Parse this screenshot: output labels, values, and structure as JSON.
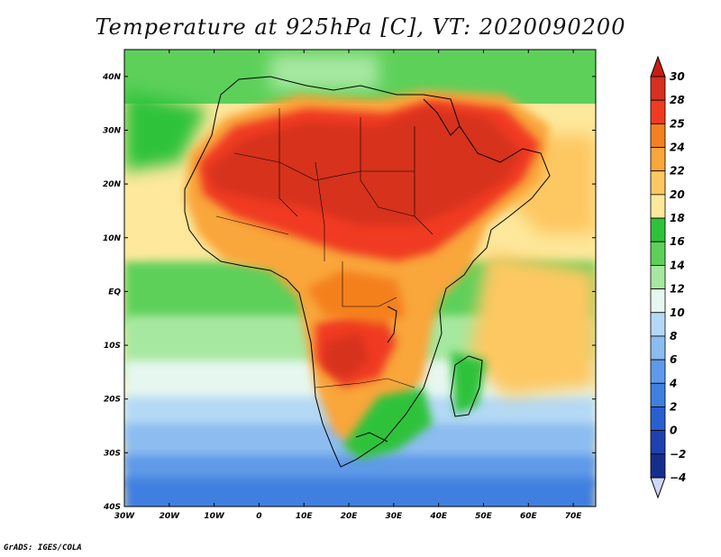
{
  "title": "Temperature at 925hPa [C], VT: 2020090200",
  "footer": "GrADS: IGES/COLA",
  "map": {
    "projection": "lat-lon",
    "lon_range": [
      -30,
      75
    ],
    "lat_range": [
      -40,
      45
    ],
    "lon_ticks": [
      {
        "value": -30,
        "label": "30W"
      },
      {
        "value": -20,
        "label": "20W"
      },
      {
        "value": -10,
        "label": "10W"
      },
      {
        "value": 0,
        "label": "0"
      },
      {
        "value": 10,
        "label": "10E"
      },
      {
        "value": 20,
        "label": "20E"
      },
      {
        "value": 30,
        "label": "30E"
      },
      {
        "value": 40,
        "label": "40E"
      },
      {
        "value": 50,
        "label": "50E"
      },
      {
        "value": 60,
        "label": "60E"
      },
      {
        "value": 70,
        "label": "70E"
      }
    ],
    "lat_ticks": [
      {
        "value": 40,
        "label": "40N"
      },
      {
        "value": 30,
        "label": "30N"
      },
      {
        "value": 20,
        "label": "20N"
      },
      {
        "value": 10,
        "label": "10N"
      },
      {
        "value": 0,
        "label": "EQ"
      },
      {
        "value": -10,
        "label": "10S"
      },
      {
        "value": -20,
        "label": "20S"
      },
      {
        "value": -30,
        "label": "30S"
      },
      {
        "value": -40,
        "label": "40S"
      }
    ]
  },
  "colorbar": {
    "levels": [
      {
        "label": "30",
        "color": "#a50f15"
      },
      {
        "label": "28",
        "color": "#d7301f"
      },
      {
        "label": "25",
        "color": "#f03b20"
      },
      {
        "label": "24",
        "color": "#f4801f"
      },
      {
        "label": "22",
        "color": "#f9a63a"
      },
      {
        "label": "20",
        "color": "#fdc862"
      },
      {
        "label": "18",
        "color": "#fde89c"
      },
      {
        "label": "16",
        "color": "#2ec23a"
      },
      {
        "label": "14",
        "color": "#5dd05a"
      },
      {
        "label": "12",
        "color": "#a6e8a0"
      },
      {
        "label": "10",
        "color": "#e6f7ef"
      },
      {
        "label": "8",
        "color": "#b4d9f5"
      },
      {
        "label": "6",
        "color": "#8cbcf0"
      },
      {
        "label": "4",
        "color": "#5e9ae8"
      },
      {
        "label": "2",
        "color": "#3f7fe0"
      },
      {
        "label": "0",
        "color": "#2a5fd0"
      },
      {
        "label": "−2",
        "color": "#1f40b0"
      },
      {
        "label": "−4",
        "color": "#152e8c"
      }
    ],
    "over_color": "#c81e0f",
    "under_color": "#cfd6f8"
  }
}
